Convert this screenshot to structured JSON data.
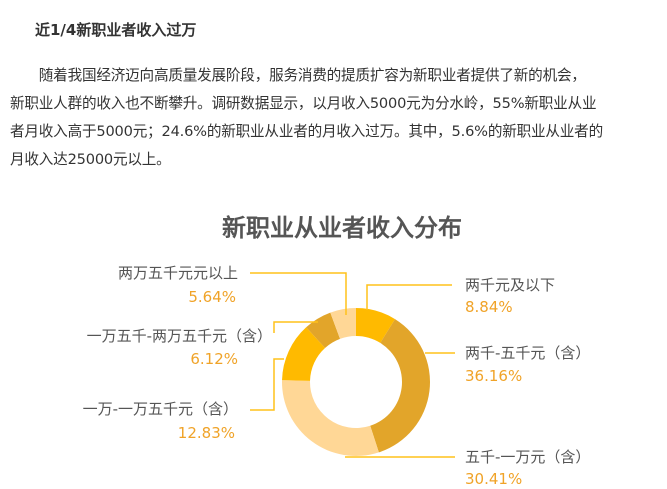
{
  "article": {
    "heading": "近1/4新职业者收入过万",
    "paragraph_lines": [
      "　　随着我国经济迈向高质量发展阶段，服务消费的提质扩容为新职业者提供了新的机会，",
      "新职业人群的收入也不断攀升。调研数据显示，以月收入5000元为分水岭，55%新职业从业",
      "者月收入高于5000元；24.6%的新职业从业者的月收入过万。其中，5.6%的新职业从业者的",
      "月收入达25000元以上。"
    ]
  },
  "chart_data": {
    "type": "pie",
    "donut": true,
    "title": "新职业从业者收入分布",
    "categories": [
      "两千元及以下",
      "两千-五千元（含）",
      "五千-一万元（含）",
      "一万-一万五千元（含）",
      "一万五千-两万五千元（含）",
      "两万五千元元以上"
    ],
    "values": [
      8.84,
      36.16,
      30.41,
      12.83,
      6.12,
      5.64
    ],
    "value_labels": [
      "8.84%",
      "36.16%",
      "30.41%",
      "12.83%",
      "6.12%",
      "5.64%"
    ],
    "colors": [
      "#FFBA00",
      "#E2A52A",
      "#FFD796",
      "#FFBA00",
      "#E2A52A",
      "#FFD796"
    ],
    "label_color": "#555555",
    "value_color": "#F0A328"
  }
}
